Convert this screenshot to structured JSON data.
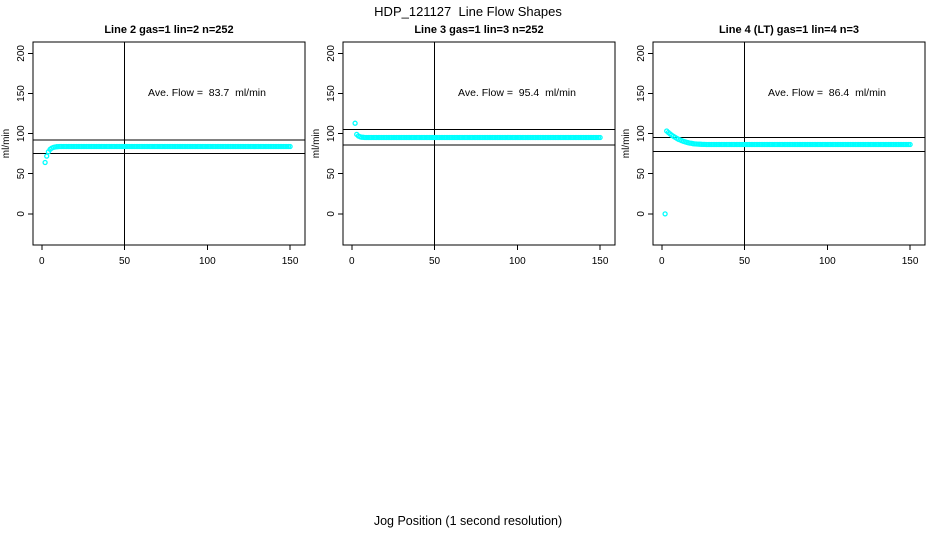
{
  "header": {
    "title": "HDP_121127  Line Flow Shapes"
  },
  "footer": {
    "xlabel": "Jog Position (1 second resolution)"
  },
  "colors": {
    "points": "#00ffff",
    "axis": "#000000",
    "background": "#ffffff"
  },
  "chart_data": [
    {
      "type": "scatter",
      "title": "Line 2 gas=1 lin=2 n=252",
      "params": {
        "line": "2",
        "gas": 1,
        "lin": 2,
        "n": 252
      },
      "ylabel": "ml/min",
      "annotation": "Ave. Flow =  83.7  ml/min",
      "ave_flow_ml_min": 83.7,
      "x_ticks": [
        0,
        50,
        100,
        150
      ],
      "y_ticks": [
        0,
        50,
        100,
        150,
        200
      ],
      "xlim": [
        -5.3,
        159
      ],
      "ylim": [
        -38.8,
        214.2
      ],
      "grid": false,
      "ref_line_upper": 92.1,
      "ref_line_lower": 75.3,
      "vline_x": 50,
      "point_color": "#00ffff",
      "series": {
        "name": "flow_ml_min",
        "x_start": 2,
        "x_step": 1,
        "y_runs": [
          [
            64,
            1
          ],
          [
            72,
            1
          ],
          [
            77.4,
            1
          ],
          [
            80.4,
            1
          ],
          [
            82,
            1
          ],
          [
            82.9,
            1
          ],
          [
            83.4,
            1
          ],
          [
            83.7,
            1
          ],
          [
            83.8,
            1
          ],
          [
            83.9,
            140
          ]
        ]
      }
    },
    {
      "type": "scatter",
      "title": "Line 3 gas=1 lin=3 n=252",
      "params": {
        "line": "3",
        "gas": 1,
        "lin": 3,
        "n": 252
      },
      "ylabel": "ml/min",
      "annotation": "Ave. Flow =  95.4  ml/min",
      "ave_flow_ml_min": 95.4,
      "x_ticks": [
        0,
        50,
        100,
        150
      ],
      "y_ticks": [
        0,
        50,
        100,
        150,
        200
      ],
      "xlim": [
        -5.3,
        159
      ],
      "ylim": [
        -38.8,
        214.2
      ],
      "grid": false,
      "ref_line_upper": 104.9,
      "ref_line_lower": 85.9,
      "vline_x": 50,
      "point_color": "#00ffff",
      "series": {
        "name": "flow_ml_min",
        "x_start": 2,
        "x_step": 1,
        "y_runs": [
          [
            113,
            1
          ],
          [
            99,
            1
          ],
          [
            97,
            1
          ],
          [
            96,
            1
          ],
          [
            95.6,
            1
          ],
          [
            95.4,
            1
          ],
          [
            95.2,
            143
          ]
        ]
      }
    },
    {
      "type": "scatter",
      "title": "Line 4 (LT) gas=1 lin=4 n=3",
      "params": {
        "line": "4 (LT)",
        "gas": 1,
        "lin": 4,
        "n": 3
      },
      "ylabel": "ml/min",
      "annotation": "Ave. Flow =  86.4  ml/min",
      "ave_flow_ml_min": 86.4,
      "x_ticks": [
        0,
        50,
        100,
        150
      ],
      "y_ticks": [
        0,
        50,
        100,
        150,
        200
      ],
      "xlim": [
        -5.3,
        159
      ],
      "ylim": [
        -38.8,
        214.2
      ],
      "grid": false,
      "ref_line_upper": 95.0,
      "ref_line_lower": 77.8,
      "vline_x": 50,
      "point_color": "#00ffff",
      "series": {
        "name": "flow_ml_min",
        "x_start": 2,
        "x_step": 1,
        "y_runs": [
          [
            0,
            1
          ],
          [
            103.3,
            1
          ],
          [
            101.4,
            1
          ],
          [
            99.7,
            1
          ],
          [
            98.1,
            1
          ],
          [
            96.7,
            1
          ],
          [
            95.4,
            1
          ],
          [
            94.2,
            1
          ],
          [
            93.1,
            1
          ],
          [
            92.2,
            1
          ],
          [
            91.3,
            1
          ],
          [
            90.5,
            1
          ],
          [
            89.8,
            1
          ],
          [
            89.2,
            1
          ],
          [
            88.7,
            1
          ],
          [
            88.2,
            1
          ],
          [
            87.9,
            1
          ],
          [
            87.5,
            1
          ],
          [
            87.2,
            1
          ],
          [
            87.1,
            1
          ],
          [
            86.9,
            1
          ],
          [
            86.8,
            1
          ],
          [
            86.7,
            1
          ],
          [
            86.6,
            2
          ],
          [
            86.5,
            2
          ],
          [
            86.4,
            122
          ]
        ]
      }
    }
  ]
}
